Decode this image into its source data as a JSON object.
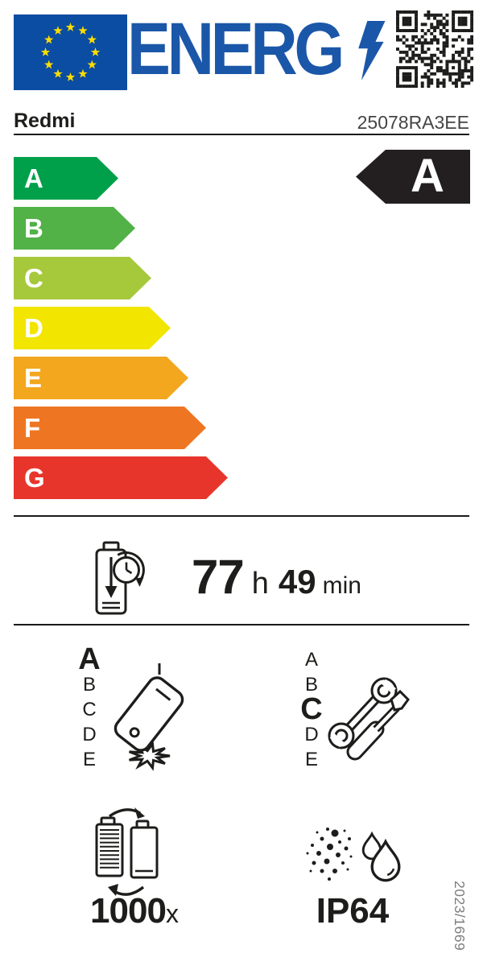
{
  "logo": {
    "energ_word": "ENERG",
    "energ_color": "#1b57a8",
    "flag_blue": "#0b4da2",
    "flag_star_yellow": "#ffdd00"
  },
  "header": {
    "brand": "Redmi",
    "model": "25078RA3EE",
    "model_color": "#454545"
  },
  "scale": {
    "grades": [
      {
        "letter": "A",
        "color": "#00a04b"
      },
      {
        "letter": "B",
        "color": "#52b147"
      },
      {
        "letter": "C",
        "color": "#a6c93c"
      },
      {
        "letter": "D",
        "color": "#f2e500"
      },
      {
        "letter": "E",
        "color": "#f2a71f"
      },
      {
        "letter": "F",
        "color": "#ee7623"
      },
      {
        "letter": "G",
        "color": "#e8352b"
      }
    ]
  },
  "rating": {
    "letter": "A",
    "bg": "#231f20"
  },
  "endurance": {
    "hours": "77",
    "hours_unit": "h",
    "minutes": "49",
    "minutes_unit": "min"
  },
  "free_fall": {
    "classes": [
      "A",
      "B",
      "C",
      "D",
      "E"
    ],
    "selected": "A"
  },
  "repairability": {
    "classes": [
      "A",
      "B",
      "C",
      "D",
      "E"
    ],
    "selected": "C"
  },
  "battery_cycles": {
    "value": "1000",
    "unit": "x"
  },
  "ingress_protection": {
    "value": "IP64"
  },
  "regulation": {
    "number": "2023/1669",
    "color": "#7d7d7d"
  }
}
